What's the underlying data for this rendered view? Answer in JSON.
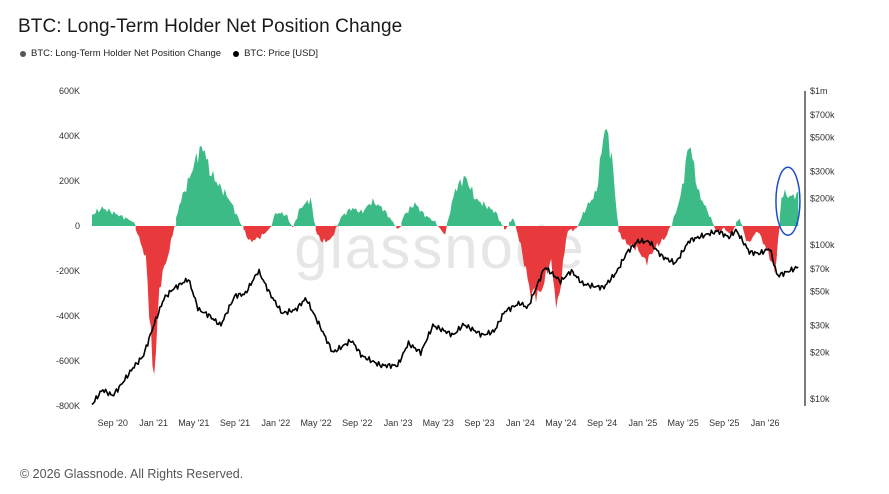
{
  "title": "BTC: Long-Term Holder Net Position Change",
  "legend": [
    {
      "label": "BTC: Long-Term Holder Net Position Change",
      "color": "#555555"
    },
    {
      "label": "BTC: Price [USD]",
      "color": "#000000"
    }
  ],
  "watermark": "glassnode",
  "footer": "© 2026 Glassnode. All Rights Reserved.",
  "colors": {
    "positive": "#3dbb87",
    "negative": "#e8393d",
    "price": "#000000",
    "highlight": "#1f4fc4"
  },
  "chart_data": {
    "type": "area",
    "title": "BTC: Long-Term Holder Net Position Change",
    "x_range": [
      "2020-07-01",
      "2026-04-15"
    ],
    "x_ticks": [
      "Sep '20",
      "Jan '21",
      "May '21",
      "Sep '21",
      "Jan '22",
      "May '22",
      "Sep '22",
      "Jan '23",
      "May '23",
      "Sep '23",
      "Jan '24",
      "May '24",
      "Sep '24",
      "Jan '25",
      "May '25",
      "Sep '25",
      "Jan '26"
    ],
    "x_tick_dates": [
      "2020-09-01",
      "2021-01-01",
      "2021-05-01",
      "2021-09-01",
      "2022-01-01",
      "2022-05-01",
      "2022-09-01",
      "2023-01-01",
      "2023-05-01",
      "2023-09-01",
      "2024-01-01",
      "2024-05-01",
      "2024-09-01",
      "2025-01-01",
      "2025-05-01",
      "2025-09-01",
      "2026-01-01"
    ],
    "y_left": {
      "ticks": [
        "600K",
        "400K",
        "200K",
        "0",
        "-200K",
        "-400K",
        "-600K",
        "-800K"
      ],
      "values": [
        600000,
        400000,
        200000,
        0,
        -200000,
        -400000,
        -600000,
        -800000
      ],
      "range": [
        -800000,
        600000
      ]
    },
    "y_right": {
      "scale": "log",
      "ticks": [
        "$1m",
        "$700k",
        "$500k",
        "$300k",
        "$200k",
        "$100k",
        "$70k",
        "$50k",
        "$30k",
        "$20k",
        "$10k"
      ],
      "values": [
        1000000,
        700000,
        500000,
        300000,
        200000,
        100000,
        70000,
        50000,
        30000,
        20000,
        10000
      ],
      "range": [
        9000,
        1000000
      ]
    },
    "series": [
      {
        "name": "BTC: Long-Term Holder Net Position Change",
        "x": [
          "2020-07-01",
          "2020-08-01",
          "2020-09-01",
          "2020-10-01",
          "2020-11-01",
          "2020-11-20",
          "2020-12-10",
          "2021-01-01",
          "2021-01-20",
          "2021-02-15",
          "2021-03-01",
          "2021-03-20",
          "2021-04-15",
          "2021-05-15",
          "2021-06-01",
          "2021-06-15",
          "2021-07-15",
          "2021-08-15",
          "2021-09-15",
          "2021-10-15",
          "2021-11-15",
          "2021-12-15",
          "2022-01-01",
          "2022-02-01",
          "2022-02-20",
          "2022-03-15",
          "2022-04-15",
          "2022-05-01",
          "2022-05-20",
          "2022-06-15",
          "2022-07-15",
          "2022-08-15",
          "2022-09-15",
          "2022-10-15",
          "2022-11-15",
          "2022-12-15",
          "2023-01-01",
          "2023-01-20",
          "2023-02-20",
          "2023-03-20",
          "2023-04-20",
          "2023-05-20",
          "2023-06-20",
          "2023-07-20",
          "2023-08-20",
          "2023-09-20",
          "2023-10-20",
          "2023-11-15",
          "2023-12-10",
          "2024-01-01",
          "2024-02-01",
          "2024-03-01",
          "2024-04-01",
          "2024-04-20",
          "2024-05-20",
          "2024-06-15",
          "2024-07-15",
          "2024-08-15",
          "2024-09-10",
          "2024-10-01",
          "2024-10-20",
          "2024-11-15",
          "2024-12-15",
          "2025-01-10",
          "2025-02-10",
          "2025-03-10",
          "2025-04-05",
          "2025-04-25",
          "2025-05-20",
          "2025-06-15",
          "2025-07-15",
          "2025-08-10",
          "2025-09-01",
          "2025-09-20",
          "2025-10-15",
          "2025-11-10",
          "2025-12-10",
          "2026-01-10",
          "2026-02-01",
          "2026-02-20",
          "2026-03-15",
          "2026-04-10"
        ],
        "values": [
          50000,
          80000,
          60000,
          40000,
          20000,
          -60000,
          -150000,
          -700000,
          -250000,
          -120000,
          -20000,
          100000,
          200000,
          330000,
          350000,
          250000,
          180000,
          120000,
          20000,
          -70000,
          -50000,
          -10000,
          60000,
          50000,
          -10000,
          80000,
          120000,
          -30000,
          -70000,
          -60000,
          40000,
          80000,
          60000,
          110000,
          80000,
          20000,
          -20000,
          50000,
          100000,
          50000,
          20000,
          -40000,
          160000,
          220000,
          120000,
          90000,
          60000,
          -20000,
          40000,
          -80000,
          -300000,
          -300000,
          -150000,
          -380000,
          -20000,
          -15000,
          80000,
          150000,
          450000,
          300000,
          -30000,
          -80000,
          -100000,
          -160000,
          -90000,
          -50000,
          40000,
          140000,
          380000,
          150000,
          60000,
          -30000,
          -10000,
          -40000,
          40000,
          -80000,
          -20000,
          -120000,
          -200000,
          150000,
          130000,
          140000
        ]
      },
      {
        "name": "BTC: Price [USD]",
        "x": [
          "2020-07-01",
          "2020-08-01",
          "2020-09-01",
          "2020-10-01",
          "2020-11-01",
          "2020-12-01",
          "2021-01-01",
          "2021-02-01",
          "2021-03-01",
          "2021-04-15",
          "2021-05-15",
          "2021-06-15",
          "2021-07-20",
          "2021-09-01",
          "2021-10-01",
          "2021-11-10",
          "2021-12-15",
          "2022-01-20",
          "2022-03-01",
          "2022-04-01",
          "2022-05-15",
          "2022-06-20",
          "2022-08-15",
          "2022-09-15",
          "2022-11-10",
          "2022-12-31",
          "2023-01-31",
          "2023-03-10",
          "2023-04-15",
          "2023-06-15",
          "2023-07-15",
          "2023-09-10",
          "2023-10-15",
          "2023-11-15",
          "2023-12-31",
          "2024-01-23",
          "2024-03-14",
          "2024-04-30",
          "2024-06-01",
          "2024-07-05",
          "2024-08-05",
          "2024-09-06",
          "2024-10-15",
          "2024-11-15",
          "2024-12-17",
          "2025-01-20",
          "2025-02-28",
          "2025-04-08",
          "2025-05-20",
          "2025-07-15",
          "2025-08-14",
          "2025-09-15",
          "2025-10-06",
          "2025-11-15",
          "2025-12-15",
          "2026-01-15",
          "2026-02-06",
          "2026-03-01",
          "2026-04-10"
        ],
        "values": [
          9200,
          11500,
          10500,
          12800,
          16000,
          19000,
          30000,
          45000,
          52000,
          60000,
          38000,
          35000,
          30000,
          47000,
          48000,
          68000,
          48000,
          36000,
          38000,
          45000,
          29000,
          20000,
          24000,
          19000,
          16500,
          16500,
          23000,
          20000,
          30000,
          26000,
          30500,
          26000,
          27500,
          37000,
          42000,
          39000,
          72000,
          58000,
          68000,
          56000,
          54000,
          53000,
          67000,
          90000,
          106000,
          105000,
          84000,
          76000,
          107000,
          118000,
          123000,
          112000,
          125000,
          90000,
          88000,
          95000,
          63000,
          66000,
          72000
        ]
      }
    ],
    "grid": false,
    "legend_position": "top-left",
    "annotation": "blue ellipse highlighting latest positive net position change"
  }
}
